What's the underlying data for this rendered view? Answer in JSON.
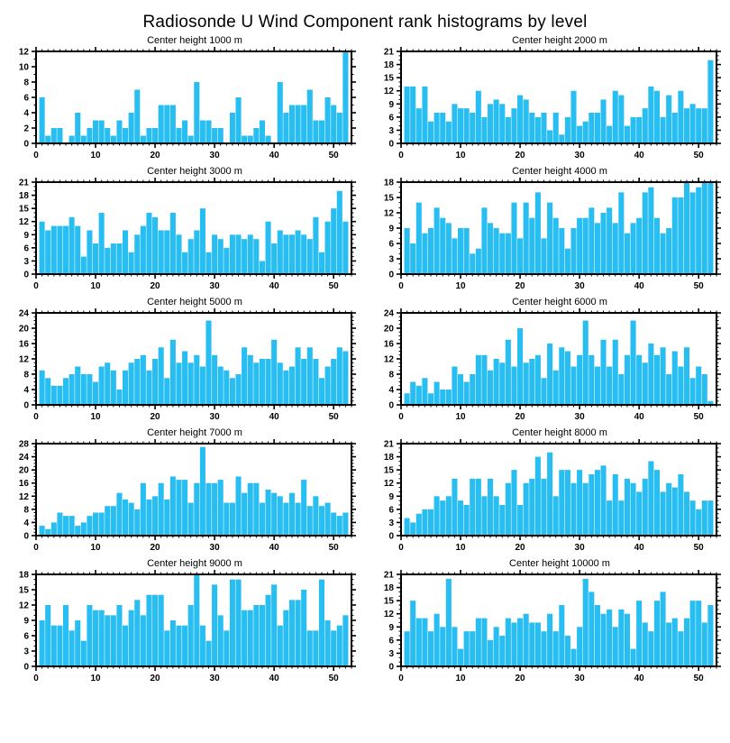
{
  "page_title": "Radiosonde U Wind Component rank histograms by level",
  "bar_color": "#29BEF2",
  "axis_color": "#000000",
  "background_color": "#FFFFFF",
  "chart_data": [
    {
      "type": "bar",
      "title": "Center height 1000 m",
      "height_m": 1000,
      "xlabel": "",
      "ylabel": "",
      "xlim": [
        0,
        53
      ],
      "xticks": [
        0,
        10,
        20,
        30,
        40,
        50
      ],
      "ylim": [
        0,
        12
      ],
      "ytick_step": 2,
      "categories_note": "rank bins 1-52",
      "values": [
        6,
        1,
        2,
        2,
        0,
        1,
        4,
        1,
        2,
        3,
        3,
        2,
        1,
        3,
        2,
        4,
        7,
        1,
        2,
        2,
        5,
        5,
        5,
        2,
        3,
        1,
        8,
        3,
        3,
        2,
        2,
        0,
        4,
        6,
        1,
        1,
        2,
        3,
        1,
        0,
        8,
        4,
        5,
        5,
        5,
        7,
        3,
        3,
        6,
        5,
        4,
        12
      ]
    },
    {
      "type": "bar",
      "title": "Center height 2000 m",
      "height_m": 2000,
      "xlabel": "",
      "ylabel": "",
      "xlim": [
        0,
        53
      ],
      "xticks": [
        0,
        10,
        20,
        30,
        40,
        50
      ],
      "ylim": [
        0,
        21
      ],
      "ytick_step": 3,
      "values": [
        13,
        13,
        8,
        13,
        5,
        7,
        7,
        5,
        9,
        8,
        8,
        7,
        12,
        6,
        9,
        10,
        9,
        6,
        8,
        11,
        10,
        7,
        6,
        7,
        3,
        7,
        2,
        6,
        12,
        4,
        5,
        7,
        7,
        10,
        4,
        12,
        11,
        4,
        6,
        6,
        8,
        13,
        12,
        6,
        11,
        7,
        12,
        8,
        9,
        8,
        8,
        19
      ]
    },
    {
      "type": "bar",
      "title": "Center height 3000 m",
      "height_m": 3000,
      "xlabel": "",
      "ylabel": "",
      "xlim": [
        0,
        53
      ],
      "xticks": [
        0,
        10,
        20,
        30,
        40,
        50
      ],
      "ylim": [
        0,
        21
      ],
      "ytick_step": 3,
      "values": [
        12,
        10,
        11,
        11,
        11,
        13,
        11,
        4,
        10,
        7,
        14,
        6,
        7,
        7,
        10,
        5,
        9,
        11,
        14,
        13,
        10,
        10,
        14,
        9,
        5,
        8,
        10,
        15,
        5,
        9,
        8,
        6,
        9,
        9,
        8,
        9,
        8,
        3,
        12,
        7,
        10,
        9,
        9,
        10,
        9,
        8,
        13,
        5,
        12,
        15,
        19,
        12
      ]
    },
    {
      "type": "bar",
      "title": "Center height 4000 m",
      "height_m": 4000,
      "xlabel": "",
      "ylabel": "",
      "xlim": [
        0,
        53
      ],
      "xticks": [
        0,
        10,
        20,
        30,
        40,
        50
      ],
      "ylim": [
        0,
        18
      ],
      "ytick_step": 3,
      "values": [
        9,
        6,
        14,
        8,
        9,
        13,
        11,
        10,
        7,
        9,
        9,
        4,
        5,
        13,
        10,
        9,
        8,
        8,
        14,
        7,
        14,
        11,
        16,
        7,
        14,
        11,
        9,
        5,
        9,
        11,
        11,
        13,
        10,
        12,
        13,
        10,
        16,
        8,
        10,
        11,
        16,
        17,
        11,
        8,
        9,
        15,
        15,
        18,
        16,
        17,
        18,
        18
      ]
    },
    {
      "type": "bar",
      "title": "Center height 5000 m",
      "height_m": 5000,
      "xlabel": "",
      "ylabel": "",
      "xlim": [
        0,
        53
      ],
      "xticks": [
        0,
        10,
        20,
        30,
        40,
        50
      ],
      "ylim": [
        0,
        24
      ],
      "ytick_step": 4,
      "values": [
        9,
        7,
        5,
        5,
        7,
        8,
        10,
        8,
        8,
        6,
        10,
        11,
        9,
        4,
        9,
        11,
        12,
        13,
        9,
        12,
        15,
        7,
        17,
        11,
        14,
        11,
        13,
        10,
        22,
        13,
        10,
        9,
        7,
        8,
        15,
        13,
        11,
        12,
        12,
        17,
        11,
        9,
        10,
        15,
        12,
        15,
        12,
        7,
        10,
        12,
        15,
        14
      ]
    },
    {
      "type": "bar",
      "title": "Center height 6000 m",
      "height_m": 6000,
      "xlabel": "",
      "ylabel": "",
      "xlim": [
        0,
        53
      ],
      "xticks": [
        0,
        10,
        20,
        30,
        40,
        50
      ],
      "ylim": [
        0,
        24
      ],
      "ytick_step": 4,
      "values": [
        3,
        6,
        5,
        7,
        3,
        6,
        4,
        4,
        10,
        8,
        6,
        8,
        13,
        13,
        9,
        12,
        11,
        17,
        10,
        20,
        11,
        12,
        13,
        7,
        16,
        9,
        15,
        14,
        10,
        13,
        22,
        13,
        10,
        17,
        10,
        17,
        8,
        13,
        22,
        13,
        11,
        16,
        13,
        15,
        8,
        14,
        10,
        15,
        7,
        10,
        8,
        1
      ]
    },
    {
      "type": "bar",
      "title": "Center height 7000 m",
      "height_m": 7000,
      "xlabel": "",
      "ylabel": "",
      "xlim": [
        0,
        53
      ],
      "xticks": [
        0,
        10,
        20,
        30,
        40,
        50
      ],
      "ylim": [
        0,
        28
      ],
      "ytick_step": 4,
      "values": [
        3,
        2,
        4,
        7,
        6,
        6,
        3,
        4,
        6,
        7,
        7,
        9,
        9,
        13,
        11,
        10,
        8,
        16,
        11,
        12,
        16,
        11,
        18,
        17,
        17,
        10,
        16,
        27,
        16,
        16,
        17,
        10,
        10,
        18,
        13,
        16,
        16,
        10,
        14,
        13,
        12,
        10,
        13,
        10,
        17,
        9,
        12,
        9,
        10,
        7,
        6,
        7
      ]
    },
    {
      "type": "bar",
      "title": "Center height 8000 m",
      "height_m": 8000,
      "xlabel": "",
      "ylabel": "",
      "xlim": [
        0,
        53
      ],
      "xticks": [
        0,
        10,
        20,
        30,
        40,
        50
      ],
      "ylim": [
        0,
        21
      ],
      "ytick_step": 3,
      "values": [
        4,
        3,
        5,
        6,
        6,
        9,
        8,
        9,
        13,
        8,
        7,
        13,
        13,
        9,
        13,
        9,
        7,
        12,
        15,
        7,
        12,
        13,
        18,
        13,
        19,
        9,
        15,
        15,
        12,
        15,
        12,
        14,
        15,
        16,
        8,
        14,
        8,
        13,
        12,
        10,
        13,
        17,
        15,
        10,
        12,
        11,
        14,
        10,
        8,
        6,
        8,
        8
      ]
    },
    {
      "type": "bar",
      "title": "Center height 9000 m",
      "height_m": 9000,
      "xlabel": "",
      "ylabel": "",
      "xlim": [
        0,
        53
      ],
      "xticks": [
        0,
        10,
        20,
        30,
        40,
        50
      ],
      "ylim": [
        0,
        18
      ],
      "ytick_step": 3,
      "values": [
        9,
        12,
        8,
        8,
        12,
        7,
        9,
        5,
        12,
        11,
        11,
        10,
        10,
        12,
        8,
        11,
        13,
        10,
        14,
        14,
        14,
        7,
        9,
        8,
        8,
        12,
        18,
        8,
        5,
        16,
        10,
        7,
        17,
        17,
        11,
        11,
        12,
        12,
        14,
        16,
        8,
        11,
        13,
        13,
        15,
        7,
        7,
        17,
        9,
        7,
        8,
        10
      ]
    },
    {
      "type": "bar",
      "title": "Center height 10000 m",
      "height_m": 10000,
      "xlabel": "",
      "ylabel": "",
      "xlim": [
        0,
        53
      ],
      "xticks": [
        0,
        10,
        20,
        30,
        40,
        50
      ],
      "ylim": [
        0,
        21
      ],
      "ytick_step": 3,
      "values": [
        8,
        15,
        11,
        11,
        8,
        12,
        9,
        20,
        9,
        4,
        8,
        8,
        11,
        11,
        6,
        9,
        7,
        11,
        10,
        11,
        12,
        10,
        10,
        8,
        12,
        8,
        14,
        7,
        4,
        9,
        20,
        17,
        14,
        12,
        13,
        9,
        13,
        12,
        4,
        15,
        10,
        8,
        15,
        17,
        10,
        11,
        8,
        11,
        15,
        15,
        10,
        14
      ]
    }
  ]
}
